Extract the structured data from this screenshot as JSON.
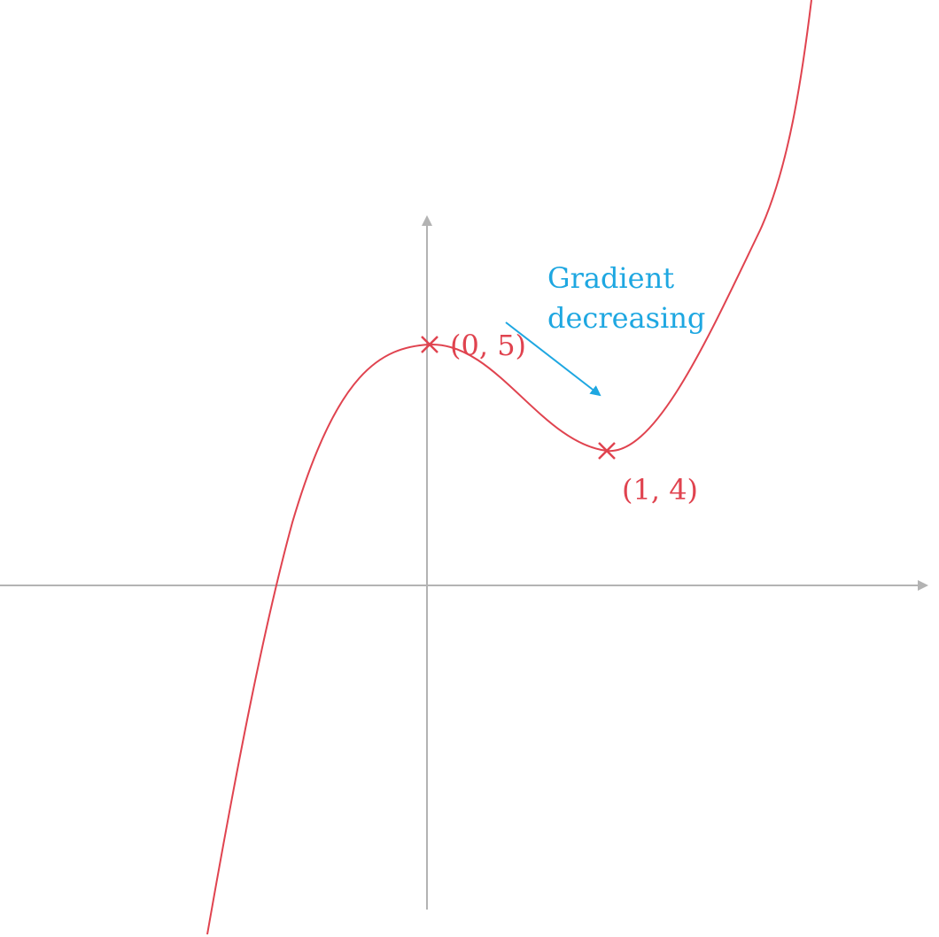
{
  "labels": {
    "max_point": "(0, 5)",
    "min_point": "(1, 4)",
    "note": [
      "Gradient",
      "decreasing"
    ]
  }
}
